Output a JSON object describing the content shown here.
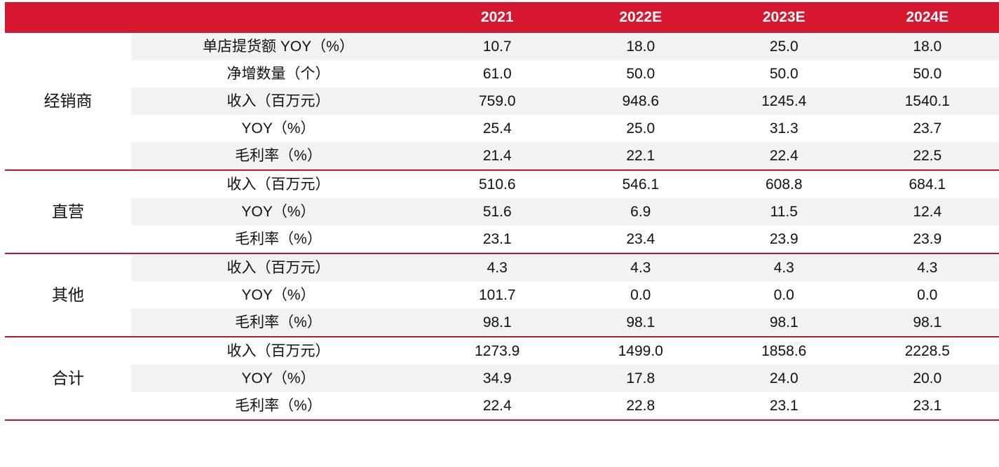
{
  "header": {
    "blank1": "",
    "blank2": "",
    "years": [
      "2021",
      "2022E",
      "2023E",
      "2024E"
    ]
  },
  "groups": [
    {
      "segment": "经销商",
      "rows": [
        {
          "metric": "单店提货额 YOY（%）",
          "values": [
            "10.7",
            "18.0",
            "25.0",
            "18.0"
          ]
        },
        {
          "metric": "净增数量（个）",
          "values": [
            "61.0",
            "50.0",
            "50.0",
            "50.0"
          ]
        },
        {
          "metric": "收入（百万元）",
          "values": [
            "759.0",
            "948.6",
            "1245.4",
            "1540.1"
          ]
        },
        {
          "metric": "YOY（%）",
          "values": [
            "25.4",
            "25.0",
            "31.3",
            "23.7"
          ]
        },
        {
          "metric": "毛利率（%）",
          "values": [
            "21.4",
            "22.1",
            "22.4",
            "22.5"
          ]
        }
      ]
    },
    {
      "segment": "直营",
      "rows": [
        {
          "metric": "收入（百万元）",
          "values": [
            "510.6",
            "546.1",
            "608.8",
            "684.1"
          ]
        },
        {
          "metric": "YOY（%）",
          "values": [
            "51.6",
            "6.9",
            "11.5",
            "12.4"
          ]
        },
        {
          "metric": "毛利率（%）",
          "values": [
            "23.1",
            "23.4",
            "23.9",
            "23.9"
          ]
        }
      ]
    },
    {
      "segment": "其他",
      "rows": [
        {
          "metric": "收入（百万元）",
          "values": [
            "4.3",
            "4.3",
            "4.3",
            "4.3"
          ]
        },
        {
          "metric": "YOY（%）",
          "values": [
            "101.7",
            "0.0",
            "0.0",
            "0.0"
          ]
        },
        {
          "metric": "毛利率（%）",
          "values": [
            "98.1",
            "98.1",
            "98.1",
            "98.1"
          ]
        }
      ]
    },
    {
      "segment": "合计",
      "rows": [
        {
          "metric": "收入（百万元）",
          "values": [
            "1273.9",
            "1499.0",
            "1858.6",
            "2228.5"
          ]
        },
        {
          "metric": "YOY（%）",
          "values": [
            "34.9",
            "17.8",
            "24.0",
            "20.0"
          ]
        },
        {
          "metric": "毛利率（%）",
          "values": [
            "22.4",
            "22.8",
            "23.1",
            "23.1"
          ]
        }
      ]
    }
  ],
  "colors": {
    "header_bg": "#D7172F",
    "header_text": "#FFFFFF",
    "row_shade": "#F2F2F2",
    "group_divider": "#B5192B"
  }
}
